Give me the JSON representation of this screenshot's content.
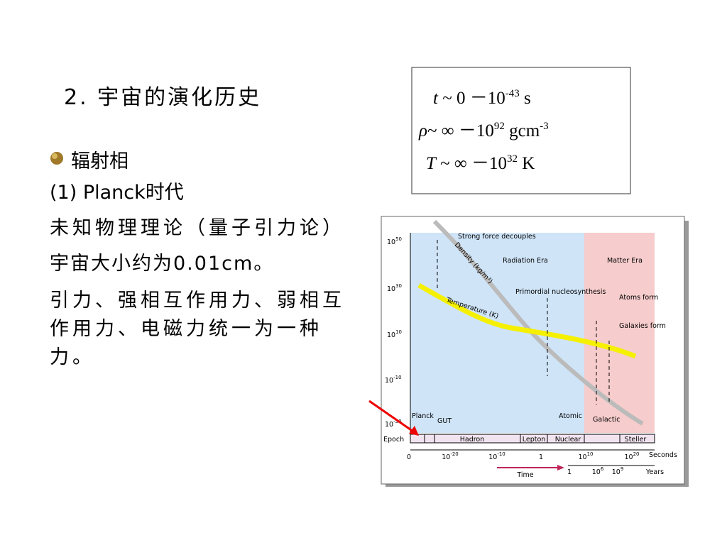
{
  "title": "2. 宇宙的演化历史",
  "formula_box": {
    "lines": [
      [
        "t",
        " ~ 0 －10",
        "-43",
        " s"
      ],
      [
        "ρ",
        "~ ∞ －10",
        "92",
        " gcm",
        "-3"
      ],
      [
        "T",
        " ~ ∞ －10",
        "32",
        " K"
      ]
    ]
  },
  "bullet": "辐射相",
  "paragraphs": [
    "(1) Planck时代",
    "未知物理理论（量子引力论）",
    "宇宙大小约为0.01cm。",
    "引力、强相互作用力、弱相互作用力、电磁力统一为一种力。"
  ],
  "figure": {
    "y_labels": [
      [
        "10",
        "50"
      ],
      [
        "10",
        "30"
      ],
      [
        "10",
        "10"
      ],
      [
        "10",
        "-10"
      ],
      [
        "10",
        "-30"
      ]
    ],
    "eras": {
      "radiation": "Radiation Era",
      "matter": "Matter Era"
    },
    "annotations": {
      "strong_force": "Strong force decouples",
      "nucleosynthesis": "Primordial nucleosynthesis",
      "atoms": "Atoms form",
      "galaxies": "Galaxies form",
      "density": "Density (kg/m³)",
      "temperature": "Temperature (K)",
      "planck": "Planck",
      "gut": "GUT",
      "atomic": "Atomic",
      "galactic": "Galactic"
    },
    "epoch": {
      "label": "Epoch",
      "names": [
        "Hadron",
        "Lepton",
        "Nuclear",
        "Steller"
      ]
    },
    "seconds": {
      "labels": [
        [
          "0",
          ""
        ],
        [
          "10",
          "-20"
        ],
        [
          "10",
          "-10"
        ],
        [
          "1",
          ""
        ],
        [
          "10",
          "10"
        ],
        [
          "10",
          "20"
        ]
      ],
      "unit": "Seconds"
    },
    "years": {
      "labels": [
        [
          "1",
          ""
        ],
        [
          "10",
          "6"
        ],
        [
          "10",
          "9"
        ]
      ],
      "unit": "Years"
    },
    "time": "Time"
  }
}
